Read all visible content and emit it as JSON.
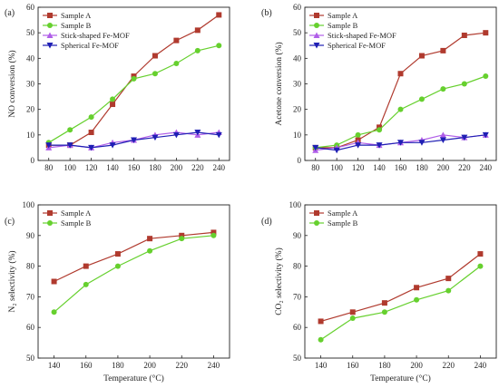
{
  "chart_data": [
    {
      "panel": "(a)",
      "type": "line",
      "xlabel": "",
      "ylabel": "NO conversion (%)",
      "xlim": [
        70,
        250
      ],
      "ylim": [
        0,
        60
      ],
      "xticks": [
        80,
        100,
        120,
        140,
        160,
        180,
        200,
        220,
        240
      ],
      "yticks": [
        0,
        10,
        20,
        30,
        40,
        50,
        60
      ],
      "legend": "top-left",
      "x": [
        80,
        100,
        120,
        140,
        160,
        180,
        200,
        220,
        240
      ],
      "series": [
        {
          "name": "Sample A",
          "color": "#b03a2e",
          "marker": "square",
          "values": [
            6,
            6,
            11,
            22,
            33,
            41,
            47,
            51,
            57
          ]
        },
        {
          "name": "Sample B",
          "color": "#66d02e",
          "marker": "circle",
          "values": [
            7,
            12,
            17,
            24,
            32,
            34,
            38,
            43,
            45
          ]
        },
        {
          "name": "Stick-shaped Fe-MOF",
          "color": "#b05ee8",
          "marker": "triangle-up",
          "values": [
            5,
            6,
            5,
            7,
            8,
            10,
            11,
            10,
            11
          ]
        },
        {
          "name": "Spherical Fe-MOF",
          "color": "#1f1fb4",
          "marker": "triangle-down",
          "values": [
            6,
            6,
            5,
            6,
            8,
            9,
            10,
            11,
            10
          ]
        }
      ]
    },
    {
      "panel": "(b)",
      "type": "line",
      "xlabel": "",
      "ylabel": "Acetone conversion (%)",
      "xlim": [
        70,
        250
      ],
      "ylim": [
        0,
        60
      ],
      "xticks": [
        80,
        100,
        120,
        140,
        160,
        180,
        200,
        220,
        240
      ],
      "yticks": [
        0,
        10,
        20,
        30,
        40,
        50,
        60
      ],
      "legend": "top-left",
      "x": [
        80,
        100,
        120,
        140,
        160,
        180,
        200,
        220,
        240
      ],
      "series": [
        {
          "name": "Sample A",
          "color": "#b03a2e",
          "marker": "square",
          "values": [
            5,
            5,
            8,
            13,
            34,
            41,
            43,
            49,
            50
          ]
        },
        {
          "name": "Sample B",
          "color": "#66d02e",
          "marker": "circle",
          "values": [
            5,
            6,
            10,
            12,
            20,
            24,
            28,
            30,
            33
          ]
        },
        {
          "name": "Stick-shaped Fe-MOF",
          "color": "#b05ee8",
          "marker": "triangle-up",
          "values": [
            4,
            5,
            7,
            6,
            7,
            8,
            10,
            9,
            10
          ]
        },
        {
          "name": "Spherical Fe-MOF",
          "color": "#1f1fb4",
          "marker": "triangle-down",
          "values": [
            5,
            4,
            6,
            6,
            7,
            7,
            8,
            9,
            10
          ]
        }
      ]
    },
    {
      "panel": "(c)",
      "type": "line",
      "xlabel": "Temperature (°C)",
      "ylabel": "N₂ selectivity (%)",
      "xlim": [
        130,
        250
      ],
      "ylim": [
        50,
        100
      ],
      "xticks": [
        140,
        160,
        180,
        200,
        220,
        240
      ],
      "yticks": [
        50,
        60,
        70,
        80,
        90,
        100
      ],
      "legend": "top-left",
      "x": [
        140,
        160,
        180,
        200,
        220,
        240
      ],
      "series": [
        {
          "name": "Sample A",
          "color": "#b03a2e",
          "marker": "square",
          "values": [
            75,
            80,
            84,
            89,
            90,
            91
          ]
        },
        {
          "name": "Sample B",
          "color": "#66d02e",
          "marker": "circle",
          "values": [
            65,
            74,
            80,
            85,
            89,
            90
          ]
        }
      ]
    },
    {
      "panel": "(d)",
      "type": "line",
      "xlabel": "Temperature (°C)",
      "ylabel": "CO₂ selectivity (%)",
      "xlim": [
        130,
        250
      ],
      "ylim": [
        50,
        100
      ],
      "xticks": [
        140,
        160,
        180,
        200,
        220,
        240
      ],
      "yticks": [
        50,
        60,
        70,
        80,
        90,
        100
      ],
      "legend": "top-left",
      "x": [
        140,
        160,
        180,
        200,
        220,
        240
      ],
      "series": [
        {
          "name": "Sample A",
          "color": "#b03a2e",
          "marker": "square",
          "values": [
            62,
            65,
            68,
            73,
            76,
            84
          ]
        },
        {
          "name": "Sample B",
          "color": "#66d02e",
          "marker": "circle",
          "values": [
            56,
            63,
            65,
            69,
            72,
            80
          ]
        }
      ]
    }
  ]
}
